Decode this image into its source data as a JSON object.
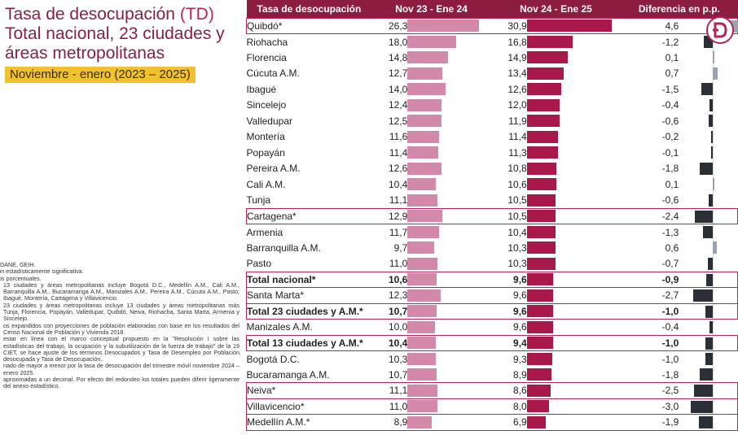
{
  "title": {
    "line1_prefix": "Tasa de desocupación ",
    "line1_accent": "(TD)",
    "line2": "Total nacional, 23 ciudades y",
    "line3": "áreas metropolitanas",
    "period": "Noviembre - enero (2023 – 2025)"
  },
  "notes": [
    {
      "text": "e: DANE, GEIH.",
      "indent": false
    },
    {
      "text": "ción estadísticamente significativa.",
      "indent": false
    },
    {
      "text": "ntos porcentuales.",
      "indent": false
    },
    {
      "text": "13 ciudades y áreas metropolitanas incluye Bogotá D.C., Medellín A.M., Cali A.M., Barranquilla A.M., Bucaramanga A.M., Manizales A.M., Pereira A.M., Cúcuta A.M., Pasto, Ibagué, Montería, Cartagena y Villavicencio.",
      "indent": true
    },
    {
      "text": "23 ciudades y áreas metropolitanas incluye 13 ciudades y áreas metropolitanas más Tunja, Florencia, Popayán, Valledupar, Quibdó, Neiva, Riohacha, Santa Marta, Armenia y Sincelejo.",
      "indent": true
    },
    {
      "text": "os expandidos con proyecciones de población elaboradas con base en los resultados del Censo Nacional de Población y Vivienda 2018.",
      "indent": true
    },
    {
      "text": "estar en línea con el marco conceptual propuesto en la \"Resolución I sobre las estadísticas del trabajo, la ocupación y la subutilización de la fuerza de trabajo\" de la 19 CIET, se hace ajuste de los términos Desocupados y Tasa de Desempleo por Población desocupada y Tasa de Desocupación.",
      "indent": true
    },
    {
      "text": "nado de mayor a menor por la tasa de desocupación del trimestre móvil noviembre 2024 – enero 2025.",
      "indent": true
    },
    {
      "text": "aproximadas a un decimal. Por efecto del redondeo los totales pueden diferir ligeramente del anexo estadístico.",
      "indent": true
    }
  ],
  "colors": {
    "header_bg": "#8c1d40",
    "bar_prev": "#d38aaa",
    "bar_curr": "#a8184b",
    "diff_negative": "#2b2f36",
    "diff_positive": "#9aa3b2",
    "highlight_border": "#b3245a",
    "period_badge": "#f2c12e"
  },
  "logo": {
    "letter": "D"
  },
  "chart_data": {
    "type": "table",
    "title": "Tasa de desocupación (TD) Total nacional, 23 ciudades y áreas metropolitanas",
    "columns": [
      "Tasa de desocupación",
      "Nov 23 - Ene 24",
      "Nov 24 - Ene 25",
      "Diferencia en p.p."
    ],
    "rows": [
      {
        "name": "Quibdó*",
        "prev": "26,3",
        "curr": "30,9",
        "diff": "4,6",
        "highlight": true,
        "bold": false
      },
      {
        "name": "Riohacha",
        "prev": "18,0",
        "curr": "16,8",
        "diff": "-1,2",
        "highlight": false,
        "bold": false
      },
      {
        "name": "Florencia",
        "prev": "14,8",
        "curr": "14,9",
        "diff": "0,1",
        "highlight": false,
        "bold": false
      },
      {
        "name": "Cúcuta A.M.",
        "prev": "12,7",
        "curr": "13,4",
        "diff": "0,7",
        "highlight": false,
        "bold": false
      },
      {
        "name": "Ibagué",
        "prev": "14,0",
        "curr": "12,6",
        "diff": "-1,5",
        "highlight": false,
        "bold": false
      },
      {
        "name": "Sincelejo",
        "prev": "12,4",
        "curr": "12,0",
        "diff": "-0,4",
        "highlight": false,
        "bold": false
      },
      {
        "name": "Valledupar",
        "prev": "12,5",
        "curr": "11,9",
        "diff": "-0,6",
        "highlight": false,
        "bold": false
      },
      {
        "name": "Montería",
        "prev": "11,6",
        "curr": "11,4",
        "diff": "-0,2",
        "highlight": false,
        "bold": false
      },
      {
        "name": "Popayán",
        "prev": "11,4",
        "curr": "11,3",
        "diff": "-0,1",
        "highlight": false,
        "bold": false
      },
      {
        "name": "Pereira A.M.",
        "prev": "12,6",
        "curr": "10,8",
        "diff": "-1,8",
        "highlight": false,
        "bold": false
      },
      {
        "name": "Cali A.M.",
        "prev": "10,4",
        "curr": "10,6",
        "diff": "0,1",
        "highlight": false,
        "bold": false
      },
      {
        "name": "Tunja",
        "prev": "11,1",
        "curr": "10,5",
        "diff": "-0,6",
        "highlight": false,
        "bold": false
      },
      {
        "name": "Cartagena*",
        "prev": "12,9",
        "curr": "10,5",
        "diff": "-2,4",
        "highlight": true,
        "bold": false
      },
      {
        "name": "Armenia",
        "prev": "11,7",
        "curr": "10,4",
        "diff": "-1,3",
        "highlight": false,
        "bold": false
      },
      {
        "name": "Barranquilla A.M.",
        "prev": "9,7",
        "curr": "10,3",
        "diff": "0,6",
        "highlight": false,
        "bold": false
      },
      {
        "name": "Pasto",
        "prev": "11,0",
        "curr": "10,3",
        "diff": "-0,7",
        "highlight": false,
        "bold": false
      },
      {
        "name": "Total nacional*",
        "prev": "10,6",
        "curr": "9,6",
        "diff": "-0,9",
        "highlight": true,
        "bold": true
      },
      {
        "name": "Santa Marta*",
        "prev": "12,3",
        "curr": "9,6",
        "diff": "-2,7",
        "highlight": true,
        "bold": false
      },
      {
        "name": "Total 23 ciudades y A.M.*",
        "prev": "10,7",
        "curr": "9,6",
        "diff": "-1,0",
        "highlight": true,
        "bold": true
      },
      {
        "name": "Manizales A.M.",
        "prev": "10,0",
        "curr": "9,6",
        "diff": "-0,4",
        "highlight": false,
        "bold": false
      },
      {
        "name": "Total 13 ciudades y A.M.*",
        "prev": "10,4",
        "curr": "9,4",
        "diff": "-1,0",
        "highlight": true,
        "bold": true
      },
      {
        "name": "Bogotá D.C.",
        "prev": "10,3",
        "curr": "9,3",
        "diff": "-1,0",
        "highlight": false,
        "bold": false
      },
      {
        "name": "Bucaramanga A.M.",
        "prev": "10,7",
        "curr": "8,9",
        "diff": "-1,8",
        "highlight": false,
        "bold": false
      },
      {
        "name": "Neiva*",
        "prev": "11,1",
        "curr": "8,6",
        "diff": "-2,5",
        "highlight": true,
        "bold": false
      },
      {
        "name": "Villavicencio*",
        "prev": "11,0",
        "curr": "8,0",
        "diff": "-3,0",
        "highlight": true,
        "bold": false
      },
      {
        "name": "Medellín A.M.*",
        "prev": "8,9",
        "curr": "6,9",
        "diff": "-1,9",
        "highlight": true,
        "bold": false
      }
    ]
  }
}
